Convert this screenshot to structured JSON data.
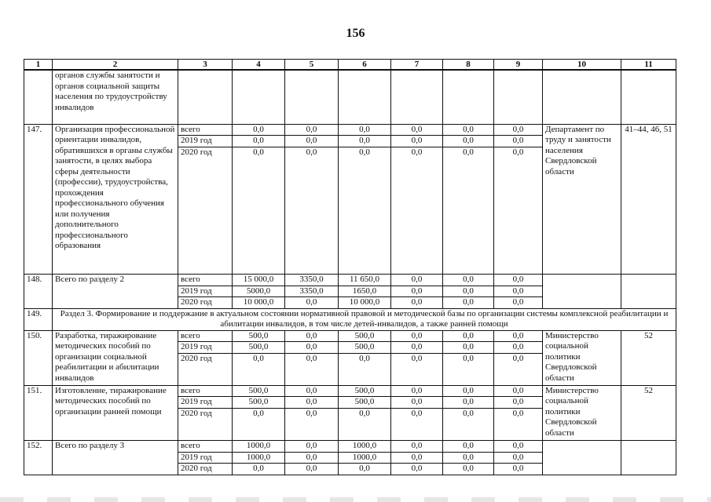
{
  "page_number": "156",
  "columns": [
    "1",
    "2",
    "3",
    "4",
    "5",
    "6",
    "7",
    "8",
    "9",
    "10",
    "11"
  ],
  "continuation": {
    "text": "органов службы занятости и органов социальной защиты населения по трудоустройству инвалидов"
  },
  "rows": [
    {
      "no": "147.",
      "name": "Организация профессиональной ориентации инвалидов, обратившихся в органы службы занятости, в целях выбора сферы деятельности (профессии), трудоустройства, прохождения профессионального обучения или получения дополнительного профессионального образования",
      "periods": [
        {
          "label": "всего",
          "values": [
            "0,0",
            "0,0",
            "0,0",
            "0,0",
            "0,0",
            "0,0"
          ]
        },
        {
          "label": "2019 год",
          "values": [
            "0,0",
            "0,0",
            "0,0",
            "0,0",
            "0,0",
            "0,0"
          ]
        },
        {
          "label": "2020 год",
          "values": [
            "0,0",
            "0,0",
            "0,0",
            "0,0",
            "0,0",
            "0,0"
          ]
        }
      ],
      "executor": "Департамент по труду и занятости населения Свердловской области",
      "targets": "41–44, 46, 51"
    },
    {
      "no": "148.",
      "name": "Всего по разделу 2",
      "periods": [
        {
          "label": "всего",
          "values": [
            "15 000,0",
            "3350,0",
            "11 650,0",
            "0,0",
            "0,0",
            "0,0"
          ]
        },
        {
          "label": "2019 год",
          "values": [
            "5000,0",
            "3350,0",
            "1650,0",
            "0,0",
            "0,0",
            "0,0"
          ]
        },
        {
          "label": "2020 год",
          "values": [
            "10 000,0",
            "0,0",
            "10 000,0",
            "0,0",
            "0,0",
            "0,0"
          ]
        }
      ],
      "executor": "",
      "targets": ""
    },
    {
      "no": "149.",
      "section": "Раздел 3. Формирование и поддержание в актуальном состоянии нормативной правовой и методической базы по организации системы комплексной реабилитации и абилитации инвалидов, в том числе детей-инвалидов, а также ранней помощи"
    },
    {
      "no": "150.",
      "name": "Разработка, тиражирование методических пособий по организации социальной реабилитации и абилитации инвалидов",
      "periods": [
        {
          "label": "всего",
          "values": [
            "500,0",
            "0,0",
            "500,0",
            "0,0",
            "0,0",
            "0,0"
          ]
        },
        {
          "label": "2019 год",
          "values": [
            "500,0",
            "0,0",
            "500,0",
            "0,0",
            "0,0",
            "0,0"
          ]
        },
        {
          "label": "2020 год",
          "values": [
            "0,0",
            "0,0",
            "0,0",
            "0,0",
            "0,0",
            "0,0"
          ]
        }
      ],
      "executor": "Министерство социальной политики Свердловской области",
      "targets": "52"
    },
    {
      "no": "151.",
      "name": "Изготовление, тиражирование методических пособий по организации ранней помощи",
      "periods": [
        {
          "label": "всего",
          "values": [
            "500,0",
            "0,0",
            "500,0",
            "0,0",
            "0,0",
            "0,0"
          ]
        },
        {
          "label": "2019 год",
          "values": [
            "500,0",
            "0,0",
            "500,0",
            "0,0",
            "0,0",
            "0,0"
          ]
        },
        {
          "label": "2020 год",
          "values": [
            "0,0",
            "0,0",
            "0,0",
            "0,0",
            "0,0",
            "0,0"
          ]
        }
      ],
      "executor": "Министерство социальной политики Свердловской области",
      "targets": "52"
    },
    {
      "no": "152.",
      "name": "Всего по разделу 3",
      "periods": [
        {
          "label": "всего",
          "values": [
            "1000,0",
            "0,0",
            "1000,0",
            "0,0",
            "0,0",
            "0,0"
          ]
        },
        {
          "label": "2019 год",
          "values": [
            "1000,0",
            "0,0",
            "1000,0",
            "0,0",
            "0,0",
            "0,0"
          ]
        },
        {
          "label": "2020 год",
          "values": [
            "0,0",
            "0,0",
            "0,0",
            "0,0",
            "0,0",
            "0,0"
          ]
        }
      ],
      "executor": "",
      "targets": ""
    }
  ]
}
